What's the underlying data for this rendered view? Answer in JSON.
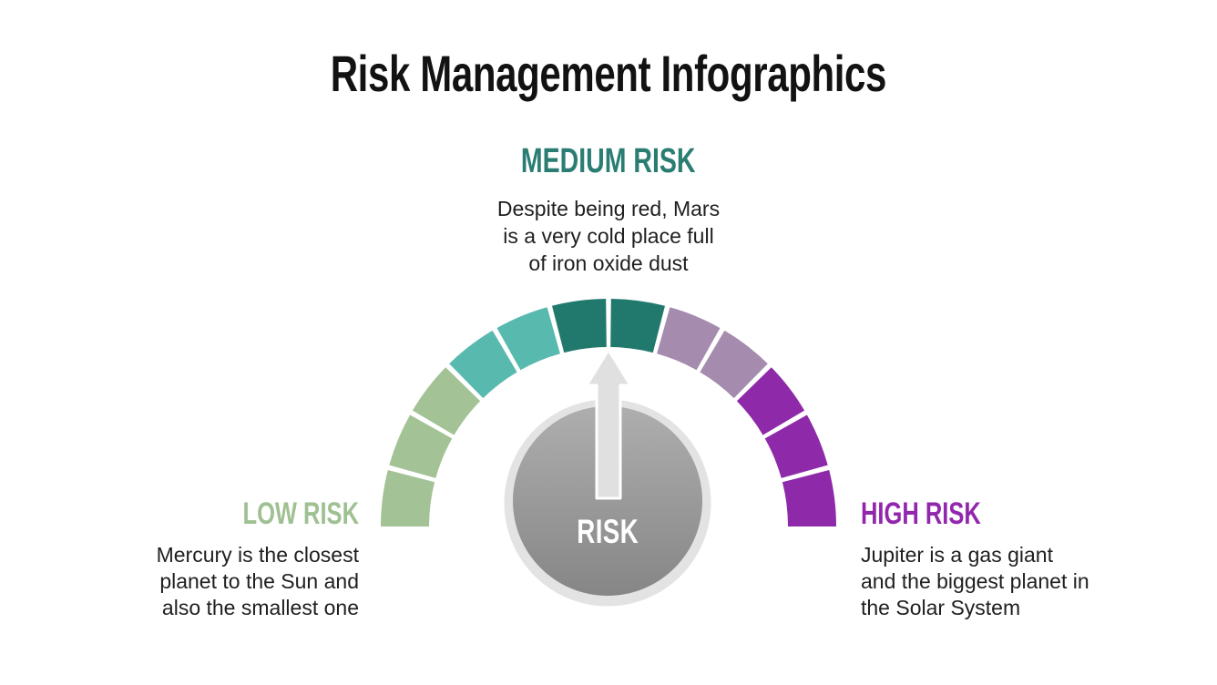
{
  "slide": {
    "title": "Risk Management Infographics",
    "title_color": "#121212",
    "background_color": "#ffffff",
    "body_text_color": "#1f1f1f"
  },
  "risk_levels": {
    "low": {
      "label": "LOW RISK",
      "color": "#9fc092",
      "description": "Mercury is the closest\nplanet to the Sun and\nalso the smallest one"
    },
    "medium": {
      "label": "MEDIUM RISK",
      "color": "#2a7d72",
      "description": "Despite being red, Mars\nis a very cold place full\nof iron oxide dust"
    },
    "high": {
      "label": "HIGH RISK",
      "color": "#9227ad",
      "description": "Jupiter is a gas giant\nand the biggest planet in\nthe Solar System"
    }
  },
  "gauge": {
    "type": "semicircular-12-segment-gauge",
    "center_label": "RISK",
    "center_label_color": "#ffffff",
    "segment_colors": [
      "#a3c296",
      "#a3c296",
      "#a3c296",
      "#58b9af",
      "#58b9af",
      "#21796d",
      "#21796d",
      "#a58cae",
      "#a58cae",
      "#8e2aa9",
      "#8e2aa9",
      "#8e2aa9"
    ],
    "knob_ring_color": "#e3e3e3",
    "knob_gradient_top": "#aeaeae",
    "knob_gradient_bottom": "#868686",
    "pointer_color": "#e0e0e0",
    "pointer_outline_color": "#ffffff",
    "pointer_direction": "up"
  }
}
